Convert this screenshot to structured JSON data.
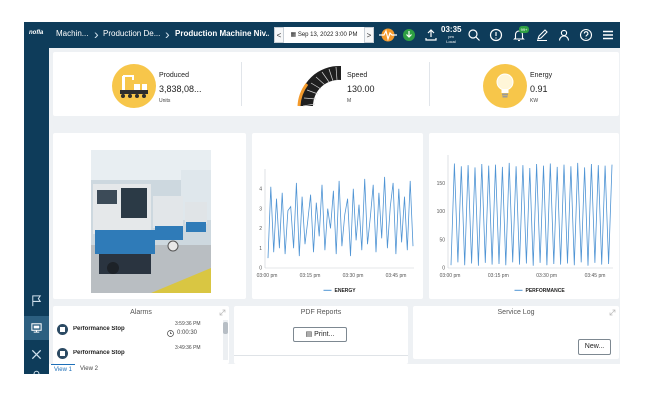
{
  "app": {
    "brand": "nofla",
    "breadcrumb": [
      "Machin...",
      "Production De...",
      "Production Machine Niv..."
    ],
    "date_prev": "<",
    "date_text": "Sep 13, 2022 3:00 PM",
    "date_next": ">",
    "clock_time": "03:35",
    "clock_ampm": "pm",
    "clock_zone": "Local",
    "notification_count": "99+"
  },
  "sidebar": {
    "items": [
      {
        "icon": "flag-icon"
      },
      {
        "icon": "dashboard-icon",
        "active": true
      },
      {
        "icon": "tools-icon"
      },
      {
        "icon": "user-icon"
      }
    ]
  },
  "kpis": [
    {
      "label": "Produced",
      "value": "3,838,08...",
      "unit": "Units",
      "icon": "assembly-line-icon"
    },
    {
      "label": "Speed",
      "value": "130.00",
      "unit": "M",
      "icon": "speed-gauge-icon"
    },
    {
      "label": "Energy",
      "value": "0.91",
      "unit": "KW",
      "icon": "lightbulb-icon"
    }
  ],
  "chart_data": [
    {
      "type": "line",
      "series": [
        {
          "name": "ENERGY",
          "values": [
            0.5,
            4.1,
            0.8,
            3.5,
            1.0,
            3.8,
            0.7,
            2.9,
            3.1,
            1.0,
            4.3,
            0.6,
            3.6,
            1.2,
            2.4,
            3.7,
            0.8,
            3.3,
            1.6,
            4.2,
            0.9,
            3.0,
            2.0,
            3.9,
            0.7,
            4.4,
            1.1,
            2.7,
            3.5,
            0.6,
            4.0,
            1.4,
            3.2,
            0.9,
            4.5,
            1.2,
            2.6,
            4.2,
            0.8,
            3.8,
            1.5,
            4.6,
            1.0,
            3.1,
            4.3,
            0.7,
            4.0,
            1.3,
            3.6,
            0.9,
            4.4,
            1.1
          ]
        }
      ],
      "x_ticks": [
        "03:00 pm",
        "03:15 pm",
        "03:30 pm",
        "03:45 pm"
      ],
      "y_ticks": [
        0,
        1,
        2,
        3,
        4
      ],
      "ylim": [
        0,
        5
      ]
    },
    {
      "type": "line",
      "series": [
        {
          "name": "PERFORMANCE",
          "values": [
            5,
            185,
            10,
            180,
            5,
            182,
            8,
            178,
            4,
            184,
            9,
            181,
            6,
            183,
            7,
            179,
            5,
            186,
            10,
            180,
            6,
            182,
            8,
            177,
            4,
            184,
            9,
            181,
            5,
            185,
            7,
            179,
            6,
            183,
            8,
            180,
            5,
            186,
            10,
            178,
            4,
            184,
            9,
            182,
            6,
            181,
            7,
            183
          ]
        }
      ],
      "x_ticks": [
        "03:00 pm",
        "03:15 pm",
        "03:30 pm",
        "03:45 pm"
      ],
      "y_ticks": [
        0,
        50,
        100,
        150
      ],
      "ylim": [
        0,
        200
      ]
    }
  ],
  "alarms": {
    "title": "Alarms",
    "items": [
      {
        "name": "Performance Stop",
        "time": "3:59:36 PM",
        "duration": "0:00:30"
      },
      {
        "name": "Performance Stop",
        "time": "3:49:36 PM",
        "duration": ""
      }
    ]
  },
  "pdf": {
    "title": "PDF Reports",
    "button": "Print..."
  },
  "service": {
    "title": "Service Log",
    "button": "New..."
  },
  "view_tabs": [
    {
      "label": "View 1",
      "active": true
    },
    {
      "label": "View 2",
      "active": false
    }
  ],
  "colors": {
    "nav": "#0e3c5a",
    "accent": "#1d6fb8",
    "line": "#4f94d4",
    "kpi_circle": "#f7c64a"
  }
}
